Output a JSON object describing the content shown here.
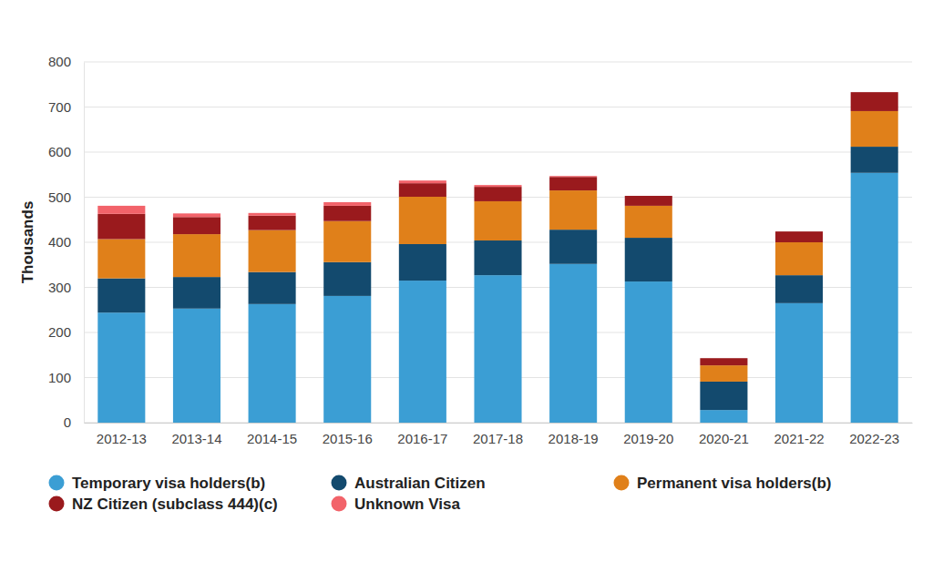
{
  "chart_data": {
    "type": "bar",
    "stacked": true,
    "grid": true,
    "legend": "bottom",
    "y_label": "Thousands",
    "categories": [
      "2012-13",
      "2013-14",
      "2014-15",
      "2015-16",
      "2016-17",
      "2017-18",
      "2018-19",
      "2019-20",
      "2020-21",
      "2021-22",
      "2022-23"
    ],
    "ylim": [
      0,
      800
    ],
    "yticks": [
      0,
      100,
      200,
      300,
      400,
      500,
      600,
      700,
      800
    ],
    "series": [
      {
        "name": "Temporary visa holders(b)",
        "color": "#3b9ed4",
        "values": [
          244,
          253,
          263,
          281,
          315,
          327,
          352,
          313,
          28,
          265,
          554
        ]
      },
      {
        "name": "Australian Citizen",
        "color": "#134a6e",
        "values": [
          76,
          70,
          71,
          75,
          81,
          77,
          76,
          97,
          63,
          62,
          58
        ]
      },
      {
        "name": "Permanent visa holders(b)",
        "color": "#e0801a",
        "values": [
          87,
          95,
          93,
          91,
          105,
          87,
          87,
          71,
          36,
          73,
          79
        ]
      },
      {
        "name": "NZ Citizen (subclass 444)(c)",
        "color": "#9a1a1d",
        "values": [
          56,
          38,
          32,
          34,
          30,
          32,
          30,
          22,
          16,
          24,
          42
        ]
      },
      {
        "name": "Unknown Visa",
        "color": "#f2636a",
        "values": [
          18,
          8,
          6,
          8,
          6,
          4,
          2,
          null,
          null,
          null,
          null
        ]
      }
    ]
  }
}
